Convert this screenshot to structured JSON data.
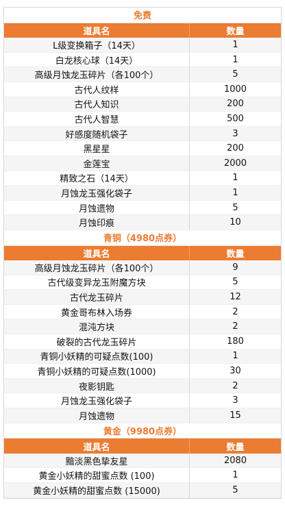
{
  "columns": {
    "item": "道具名",
    "qty": "数量"
  },
  "sections": [
    {
      "title": "免费",
      "rows": [
        {
          "item": "L级变换箱子（14天）",
          "qty": "1"
        },
        {
          "item": "白龙核心球（14天）",
          "qty": "1"
        },
        {
          "item": "高级月蚀龙玉碎片（各100个）",
          "qty": "5"
        },
        {
          "item": "古代人纹样",
          "qty": "1000"
        },
        {
          "item": "古代人知识",
          "qty": "200"
        },
        {
          "item": "古代人智慧",
          "qty": "500"
        },
        {
          "item": "好感度随机袋子",
          "qty": "3"
        },
        {
          "item": "黑星星",
          "qty": "200"
        },
        {
          "item": "金莲宝",
          "qty": "2000"
        },
        {
          "item": "精致之石（14天）",
          "qty": "1"
        },
        {
          "item": "月蚀龙玉强化袋子",
          "qty": "1"
        },
        {
          "item": "月蚀遗物",
          "qty": "5"
        },
        {
          "item": "月蚀印痕",
          "qty": "10"
        }
      ]
    },
    {
      "title": "青铜（4980点券）",
      "rows": [
        {
          "item": "高级月蚀龙玉碎片（各100个）",
          "qty": "9"
        },
        {
          "item": "古代级变异龙玉附魔方块",
          "qty": "5"
        },
        {
          "item": "古代龙玉碎片",
          "qty": "12"
        },
        {
          "item": "黄金哥布林入场券",
          "qty": "2"
        },
        {
          "item": "混沌方块",
          "qty": "2"
        },
        {
          "item": "破裂的古代龙玉碎片",
          "qty": "180"
        },
        {
          "item": "青铜小妖精的可疑点数(100)",
          "qty": "1"
        },
        {
          "item": "青铜小妖精的可疑点数(1000)",
          "qty": "30"
        },
        {
          "item": "夜影钥匙",
          "qty": "2"
        },
        {
          "item": "月蚀龙玉强化袋子",
          "qty": "3"
        },
        {
          "item": "月蚀遗物",
          "qty": "15"
        }
      ]
    },
    {
      "title": "黄金（9980点券）",
      "rows": [
        {
          "item": "黯淡黑色挚友星",
          "qty": "2080"
        },
        {
          "item": "黄金小妖精的甜蜜点数 (100)",
          "qty": "1"
        },
        {
          "item": "黄金小妖精的甜蜜点数 (15000)",
          "qty": "5"
        }
      ]
    }
  ]
}
